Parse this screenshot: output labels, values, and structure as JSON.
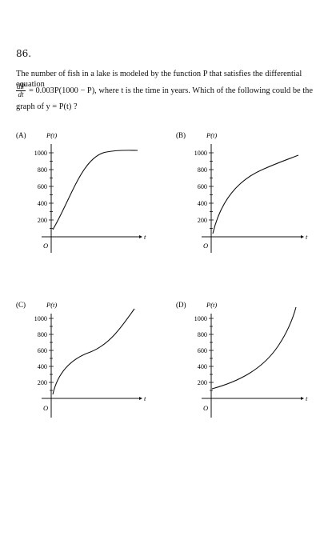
{
  "question": {
    "number": "86.",
    "stem": "The number of fish in a lake is modeled by the function P that satisfies the differential equation",
    "deriv_num": "dP",
    "deriv_den": "dt",
    "equation": "= 0.003P(1000 − P), where t is the time in years. Which of the following could be the",
    "prompt": "graph of y = P(t) ?"
  },
  "choices": [
    {
      "label": "(A)",
      "y_axis_label": "P(t)",
      "x_axis_label": "t",
      "origin": "O",
      "ticks": [
        "1000",
        "800",
        "600",
        "400",
        "200"
      ]
    },
    {
      "label": "(B)",
      "y_axis_label": "P(t)",
      "x_axis_label": "t",
      "origin": "O",
      "ticks": [
        "1000",
        "800",
        "600",
        "400",
        "200"
      ]
    },
    {
      "label": "(C)",
      "y_axis_label": "P(t)",
      "x_axis_label": "t",
      "origin": "O",
      "ticks": [
        "1000",
        "800",
        "600",
        "400",
        "200"
      ]
    },
    {
      "label": "(D)",
      "y_axis_label": "P(t)",
      "x_axis_label": "t",
      "origin": "O",
      "ticks": [
        "1000",
        "800",
        "600",
        "400",
        "200"
      ]
    }
  ],
  "colors": {
    "ink": "#111111",
    "background": "#ffffff"
  }
}
